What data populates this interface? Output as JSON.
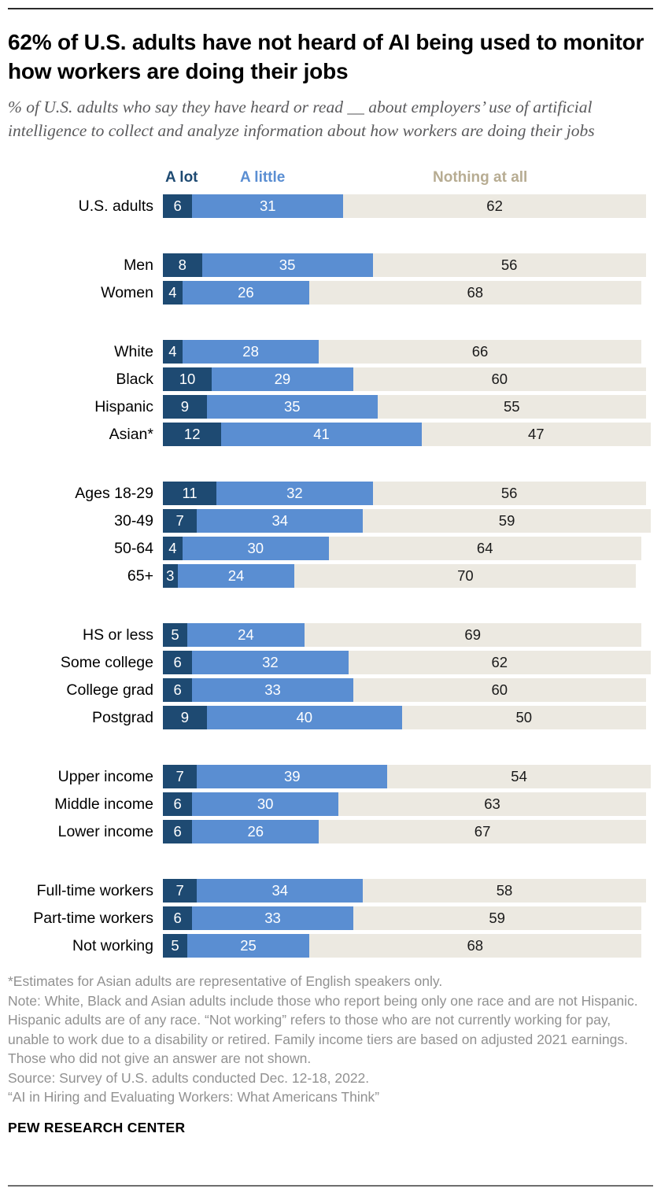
{
  "title": "62% of U.S. adults have not heard of AI being used to monitor how workers are doing their jobs",
  "subtitle": "% of U.S. adults who say they have heard or read __ about employers’ use of artificial intelligence to collect and analyze information about how workers are doing their jobs",
  "legend": [
    {
      "label": "A lot",
      "color": "#1e4a72"
    },
    {
      "label": "A little",
      "color": "#5a8ed2"
    },
    {
      "label": "Nothing at all",
      "color": "#b7ac92"
    }
  ],
  "chart_data": {
    "type": "bar",
    "stacked": true,
    "orientation": "horizontal",
    "unit": "%",
    "xlim": [
      0,
      100
    ],
    "series_names": [
      "A lot",
      "A little",
      "Nothing at all"
    ],
    "segment_colors": [
      "#1e4a72",
      "#5a8ed2",
      "#ece9e1"
    ],
    "groups": [
      {
        "rows": [
          {
            "label": "U.S. adults",
            "values": [
              6,
              31,
              62
            ]
          }
        ]
      },
      {
        "rows": [
          {
            "label": "Men",
            "values": [
              8,
              35,
              56
            ]
          },
          {
            "label": "Women",
            "values": [
              4,
              26,
              68
            ]
          }
        ]
      },
      {
        "rows": [
          {
            "label": "White",
            "values": [
              4,
              28,
              66
            ]
          },
          {
            "label": "Black",
            "values": [
              10,
              29,
              60
            ]
          },
          {
            "label": "Hispanic",
            "values": [
              9,
              35,
              55
            ]
          },
          {
            "label": "Asian*",
            "values": [
              12,
              41,
              47
            ]
          }
        ]
      },
      {
        "rows": [
          {
            "label": "Ages 18-29",
            "values": [
              11,
              32,
              56
            ]
          },
          {
            "label": "30-49",
            "values": [
              7,
              34,
              59
            ]
          },
          {
            "label": "50-64",
            "values": [
              4,
              30,
              64
            ]
          },
          {
            "label": "65+",
            "values": [
              3,
              24,
              70
            ]
          }
        ]
      },
      {
        "rows": [
          {
            "label": "HS or less",
            "values": [
              5,
              24,
              69
            ]
          },
          {
            "label": "Some college",
            "values": [
              6,
              32,
              62
            ]
          },
          {
            "label": "College grad",
            "values": [
              6,
              33,
              60
            ]
          },
          {
            "label": "Postgrad",
            "values": [
              9,
              40,
              50
            ]
          }
        ]
      },
      {
        "rows": [
          {
            "label": "Upper income",
            "values": [
              7,
              39,
              54
            ]
          },
          {
            "label": "Middle income",
            "values": [
              6,
              30,
              63
            ]
          },
          {
            "label": "Lower income",
            "values": [
              6,
              26,
              67
            ]
          }
        ]
      },
      {
        "rows": [
          {
            "label": "Full-time workers",
            "values": [
              7,
              34,
              58
            ]
          },
          {
            "label": "Part-time workers",
            "values": [
              6,
              33,
              59
            ]
          },
          {
            "label": "Not working",
            "values": [
              5,
              25,
              68
            ]
          }
        ]
      }
    ]
  },
  "notes": {
    "asterisk": "*Estimates for Asian adults are representative of English speakers only.",
    "note": "Note: White, Black and Asian adults include those who report being only one race and are not Hispanic. Hispanic adults are of any race. “Not working” refers to those who are not currently working for pay, unable to work due to a disability or retired. Family income tiers are based on adjusted 2021 earnings. Those who did not give an answer are not shown.",
    "source": "Source: Survey of U.S. adults conducted Dec. 12-18, 2022.",
    "quote": "“AI in Hiring and Evaluating Workers: What Americans Think”"
  },
  "footer": "PEW RESEARCH CENTER"
}
